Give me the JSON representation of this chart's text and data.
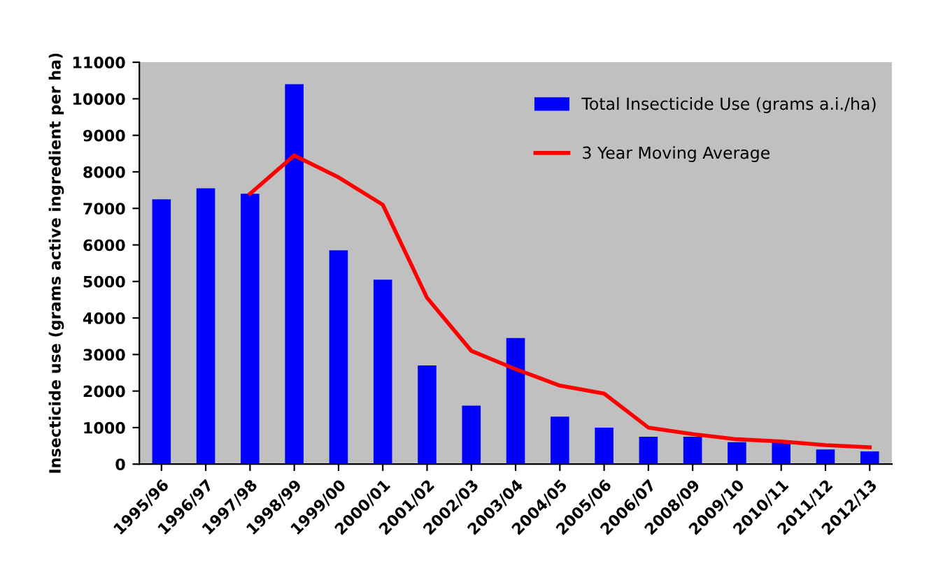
{
  "chart_data": {
    "type": "bar",
    "ylabel": "Insecticide use (grams active ingredient per ha)",
    "categories": [
      "1995/96",
      "1996/97",
      "1997/98",
      "1998/99",
      "1999/00",
      "2000/01",
      "2001/02",
      "2002/03",
      "2003/04",
      "2004/05",
      "2005/06",
      "2006/07",
      "2008/09",
      "2009/10",
      "2010/11",
      "2011/12",
      "2012/13"
    ],
    "series": [
      {
        "name": "Total Insecticide Use (grams a.i./ha)",
        "color": "#0000ff",
        "values": [
          7250,
          7550,
          7400,
          10400,
          5850,
          5050,
          2700,
          1600,
          3450,
          1300,
          1000,
          750,
          750,
          600,
          600,
          400,
          350
        ]
      },
      {
        "name": "3 Year Moving Average",
        "color": "#ff0000",
        "type": "line",
        "values": [
          null,
          null,
          7400,
          8450,
          7850,
          7100,
          4550,
          3100,
          2600,
          2150,
          1930,
          1000,
          820,
          680,
          620,
          520,
          460
        ]
      }
    ],
    "ylim": [
      0,
      11000
    ],
    "yticks": [
      0,
      1000,
      2000,
      3000,
      4000,
      5000,
      6000,
      7000,
      8000,
      9000,
      10000,
      11000
    ],
    "grid": false,
    "legend": "top right",
    "marker": "none"
  }
}
